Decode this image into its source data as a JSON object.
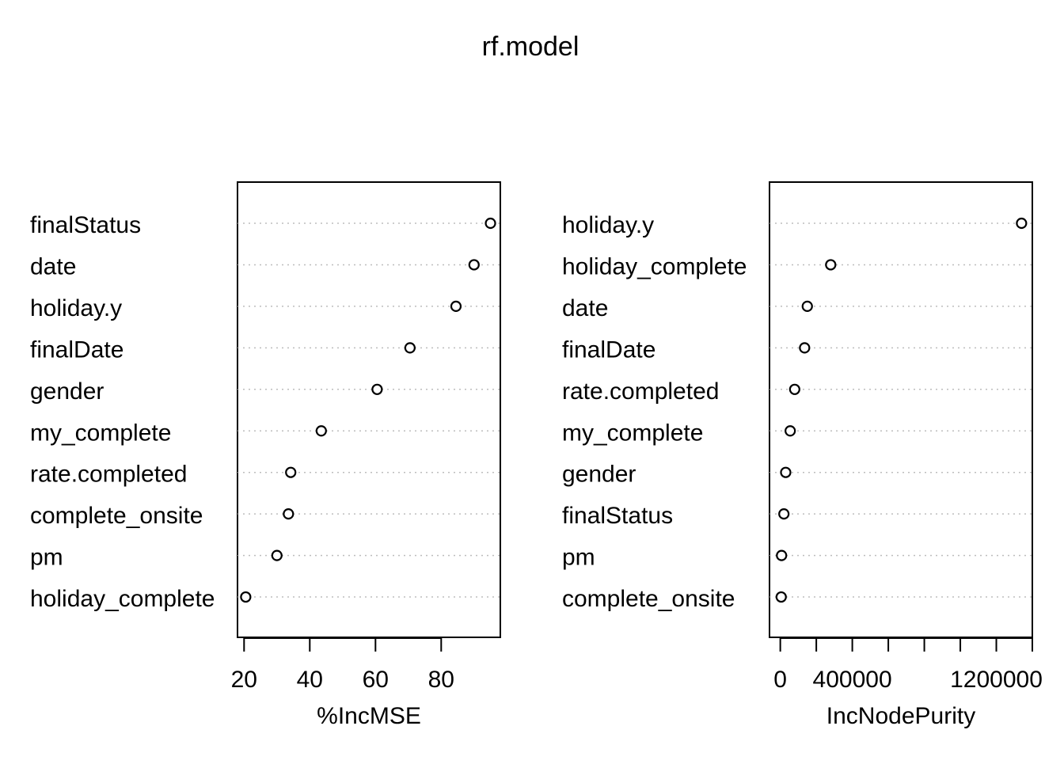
{
  "title": "rf.model",
  "chart_data": [
    {
      "type": "scatter",
      "subtype": "dotchart",
      "xlabel": "%IncMSE",
      "ylabel": "",
      "xlim": [
        18,
        98
      ],
      "xticks": [
        20,
        40,
        60,
        80
      ],
      "grid": "dotted horizontal",
      "categories": [
        "finalStatus",
        "date",
        "holiday.y",
        "finalDate",
        "gender",
        "my_complete",
        "rate.completed",
        "complete_onsite",
        "pm",
        "holiday_complete"
      ],
      "values": [
        95,
        90,
        84.5,
        70.5,
        60.5,
        43.5,
        34.2,
        33.5,
        30,
        20.5
      ]
    },
    {
      "type": "scatter",
      "subtype": "dotchart",
      "xlabel": "IncNodePurity",
      "ylabel": "",
      "xlim": [
        -60000,
        1400000
      ],
      "xticks": [
        0,
        200000,
        400000,
        600000,
        800000,
        1000000,
        1200000,
        1400000
      ],
      "xtick_labels": [
        "0",
        "",
        "400000",
        "",
        "",
        "",
        "1200000",
        ""
      ],
      "grid": "dotted horizontal",
      "categories": [
        "holiday.y",
        "holiday_complete",
        "date",
        "finalDate",
        "rate.completed",
        "my_complete",
        "gender",
        "finalStatus",
        "pm",
        "complete_onsite"
      ],
      "values": [
        1340000,
        280000,
        150000,
        135000,
        80000,
        55000,
        30000,
        20000,
        7000,
        5000
      ]
    }
  ]
}
